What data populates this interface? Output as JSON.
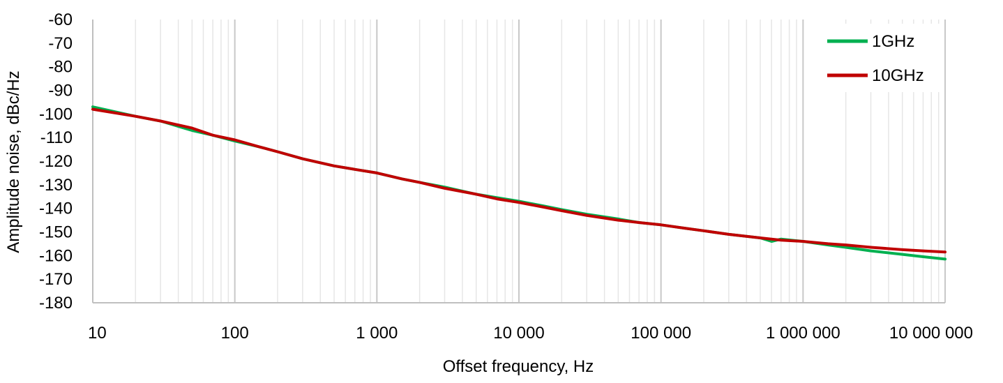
{
  "chart_data": {
    "type": "line",
    "title": "",
    "xlabel": "Offset frequency, Hz",
    "ylabel": "Amplitude noise, dBc/Hz",
    "x_scale": "log",
    "xlim": [
      10,
      10000000
    ],
    "ylim": [
      -180,
      -60
    ],
    "x_ticks": [
      10,
      100,
      1000,
      10000,
      100000,
      1000000,
      10000000
    ],
    "x_tick_labels": [
      "10",
      "100",
      "1 000",
      "10 000",
      "100 000",
      "1 000 000",
      "10 000 000"
    ],
    "y_ticks": [
      -60,
      -70,
      -80,
      -90,
      -100,
      -110,
      -120,
      -130,
      -140,
      -150,
      -160,
      -170,
      -180
    ],
    "y_tick_labels": [
      "-60",
      "-70",
      "-80",
      "-90",
      "-100",
      "-110",
      "-120",
      "-130",
      "-140",
      "-150",
      "-160",
      "-170",
      "-180"
    ],
    "grid": true,
    "legend_position": "top-right",
    "series": [
      {
        "name": "1GHz",
        "color": "#00B050",
        "x": [
          10,
          20,
          30,
          50,
          70,
          100,
          150,
          200,
          300,
          500,
          700,
          1000,
          1500,
          2000,
          3000,
          5000,
          7000,
          10000,
          15000,
          20000,
          30000,
          50000,
          70000,
          100000,
          150000,
          200000,
          300000,
          500000,
          600000,
          700000,
          1000000,
          1500000,
          2000000,
          3000000,
          5000000,
          7000000,
          10000000
        ],
        "y": [
          -97,
          -101,
          -103,
          -107,
          -109,
          -111.5,
          -114,
          -116,
          -119,
          -122,
          -123.5,
          -125,
          -127.5,
          -129,
          -131,
          -134,
          -135.5,
          -137,
          -139,
          -140.5,
          -142.5,
          -144.5,
          -146,
          -147,
          -148.5,
          -149.5,
          -151,
          -152.5,
          -154,
          -153,
          -154,
          -155.5,
          -156.5,
          -158,
          -159.5,
          -160.5,
          -161.5
        ]
      },
      {
        "name": "10GHz",
        "color": "#C00000",
        "x": [
          10,
          20,
          30,
          50,
          70,
          100,
          150,
          200,
          300,
          500,
          700,
          1000,
          1500,
          2000,
          3000,
          5000,
          7000,
          10000,
          15000,
          20000,
          30000,
          50000,
          70000,
          100000,
          150000,
          200000,
          300000,
          500000,
          700000,
          1000000,
          1500000,
          2000000,
          3000000,
          5000000,
          7000000,
          10000000
        ],
        "y": [
          -98,
          -101,
          -103,
          -106,
          -109,
          -111,
          -114,
          -116,
          -119,
          -122,
          -123.5,
          -125,
          -127.5,
          -129,
          -131.5,
          -134,
          -136,
          -137.5,
          -139.5,
          -141,
          -143,
          -145,
          -146,
          -147,
          -148.5,
          -149.5,
          -151,
          -152.5,
          -153.5,
          -154,
          -155,
          -155.5,
          -156.5,
          -157.5,
          -158,
          -158.5
        ]
      }
    ]
  }
}
